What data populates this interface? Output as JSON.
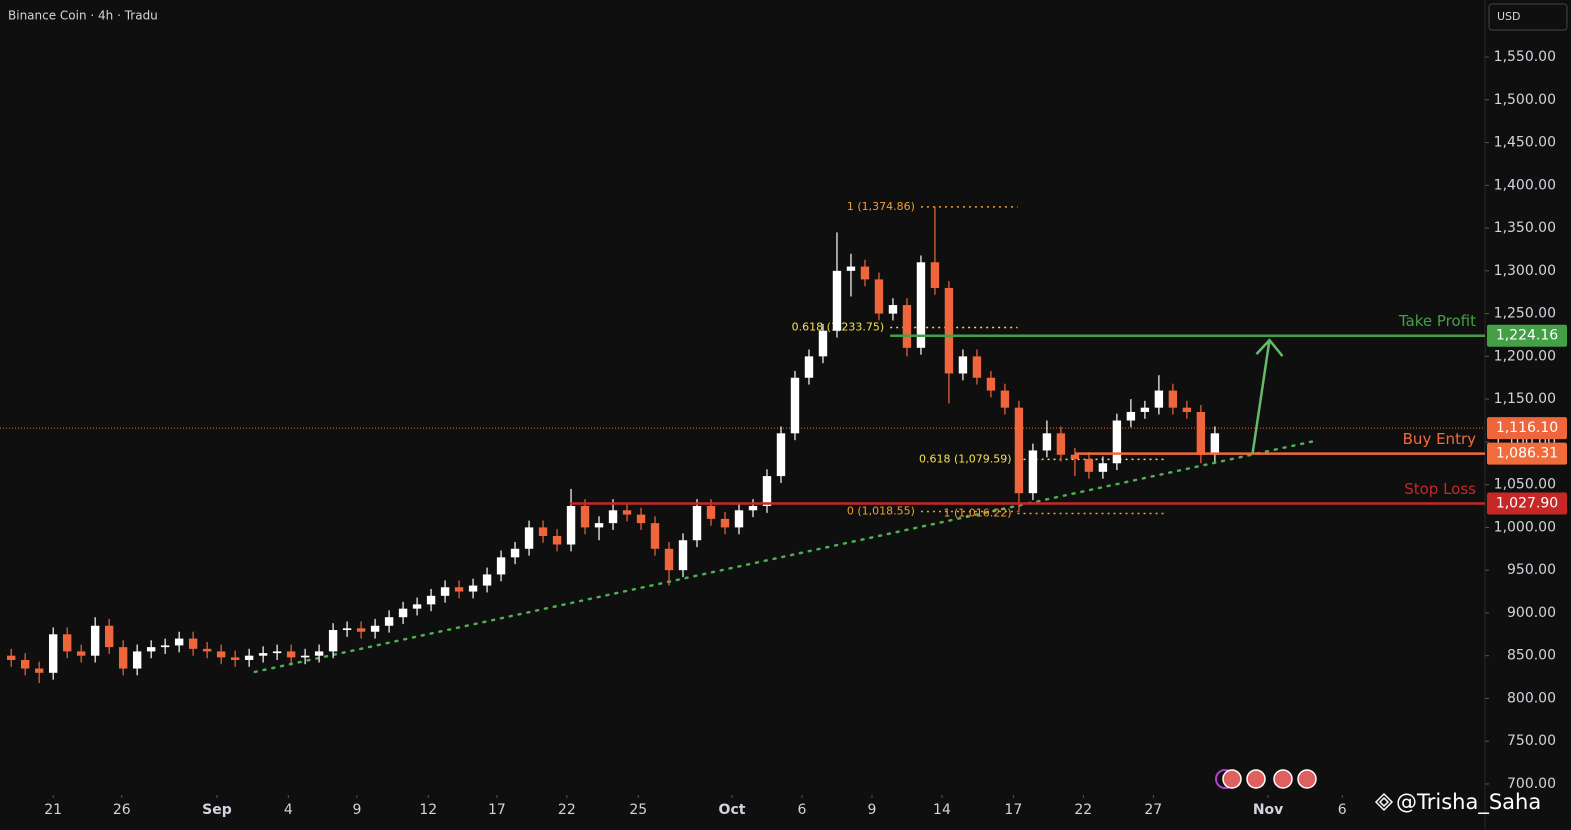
{
  "header": {
    "symbol": "Binance Coin · 4h · Tradu",
    "currency": "USD"
  },
  "watermark": "@Trisha_Saha",
  "chart_data": {
    "type": "candlestick",
    "x": [
      -3,
      -2,
      -1,
      0,
      1,
      2,
      3,
      4,
      5,
      6,
      7,
      8,
      9,
      10,
      11,
      12,
      13,
      14,
      15,
      16,
      17,
      18,
      19,
      20,
      21,
      22,
      23,
      24,
      25,
      26,
      27,
      28,
      29,
      30,
      31,
      32,
      33,
      34,
      35,
      36,
      37,
      38,
      39,
      40,
      41,
      42,
      43,
      44,
      45,
      46,
      47,
      48,
      49,
      50,
      51,
      52,
      53,
      54,
      55,
      56,
      57,
      58,
      59,
      60,
      61,
      62,
      63,
      64,
      65,
      66,
      67,
      68,
      69,
      70,
      71,
      72,
      73,
      74,
      75,
      76,
      77,
      78,
      79,
      80,
      81,
      82,
      83
    ],
    "open": [
      850,
      845,
      835,
      830,
      875,
      855,
      850,
      885,
      860,
      835,
      855,
      860,
      862,
      870,
      858,
      855,
      848,
      845,
      850,
      853,
      855,
      848,
      850,
      855,
      880,
      882,
      878,
      885,
      895,
      905,
      910,
      920,
      930,
      925,
      932,
      945,
      965,
      975,
      1000,
      990,
      980,
      1025,
      1000,
      1005,
      1020,
      1015,
      1005,
      975,
      950,
      985,
      1025,
      1010,
      1000,
      1020,
      1025,
      1060,
      1110,
      1175,
      1200,
      1230,
      1300,
      1305,
      1290,
      1250,
      1260,
      1210,
      1310,
      1280,
      1180,
      1200,
      1175,
      1160,
      1140,
      1040,
      1090,
      1110,
      1085,
      1080,
      1065,
      1075,
      1125,
      1135,
      1140,
      1160,
      1140,
      1135,
      1085
    ],
    "high": [
      858,
      853,
      843,
      883,
      883,
      863,
      895,
      893,
      868,
      863,
      868,
      870,
      878,
      878,
      866,
      863,
      856,
      858,
      861,
      863,
      863,
      858,
      863,
      888,
      890,
      890,
      893,
      903,
      913,
      918,
      928,
      938,
      938,
      940,
      953,
      973,
      983,
      1008,
      1008,
      998,
      1045,
      1033,
      1013,
      1033,
      1028,
      1023,
      1013,
      983,
      993,
      1033,
      1033,
      1018,
      1028,
      1033,
      1068,
      1118,
      1183,
      1208,
      1238,
      1345,
      1320,
      1313,
      1298,
      1268,
      1268,
      1318,
      1375,
      1288,
      1208,
      1208,
      1183,
      1168,
      1148,
      1098,
      1125,
      1118,
      1093,
      1088,
      1083,
      1133,
      1150,
      1148,
      1178,
      1168,
      1148,
      1143,
      1118
    ],
    "low": [
      837,
      827,
      818,
      822,
      847,
      842,
      842,
      852,
      827,
      827,
      847,
      852,
      854,
      850,
      847,
      840,
      837,
      837,
      842,
      845,
      840,
      840,
      842,
      847,
      872,
      870,
      870,
      877,
      887,
      897,
      902,
      912,
      917,
      917,
      924,
      937,
      957,
      967,
      982,
      972,
      972,
      992,
      985,
      997,
      1007,
      997,
      967,
      932,
      942,
      977,
      1002,
      992,
      992,
      1012,
      1017,
      1052,
      1102,
      1167,
      1192,
      1222,
      1270,
      1282,
      1242,
      1242,
      1200,
      1202,
      1272,
      1145,
      1172,
      1167,
      1152,
      1132,
      1018,
      1032,
      1082,
      1077,
      1060,
      1057,
      1057,
      1067,
      1117,
      1127,
      1132,
      1132,
      1127,
      1075,
      1077
    ],
    "close": [
      845,
      835,
      830,
      875,
      855,
      850,
      885,
      860,
      835,
      855,
      860,
      862,
      870,
      858,
      855,
      848,
      845,
      850,
      853,
      855,
      848,
      850,
      855,
      880,
      882,
      878,
      885,
      895,
      905,
      910,
      920,
      930,
      925,
      932,
      945,
      965,
      975,
      1000,
      990,
      980,
      1025,
      1000,
      1005,
      1020,
      1015,
      1005,
      975,
      950,
      985,
      1025,
      1010,
      1000,
      1020,
      1025,
      1060,
      1110,
      1175,
      1200,
      1230,
      1300,
      1305,
      1290,
      1250,
      1260,
      1210,
      1310,
      1280,
      1180,
      1200,
      1175,
      1160,
      1140,
      1040,
      1090,
      1110,
      1085,
      1080,
      1065,
      1075,
      1125,
      1135,
      1140,
      1160,
      1140,
      1135,
      1085,
      1110
    ],
    "up_color": "#ffffff",
    "down_color": "#f0663c",
    "xlim": [
      -3.8,
      102.3
    ],
    "ylim": [
      687.1,
      1616.7
    ],
    "xticks": [
      {
        "value": 0,
        "label": "21"
      },
      {
        "value": 4.9,
        "label": "26"
      },
      {
        "value": 11.7,
        "label": "Sep"
      },
      {
        "value": 16.8,
        "label": "4"
      },
      {
        "value": 21.7,
        "label": "9"
      },
      {
        "value": 26.8,
        "label": "12"
      },
      {
        "value": 31.7,
        "label": "17"
      },
      {
        "value": 36.7,
        "label": "22"
      },
      {
        "value": 41.8,
        "label": "25"
      },
      {
        "value": 48.5,
        "label": "Oct"
      },
      {
        "value": 53.5,
        "label": "6"
      },
      {
        "value": 58.5,
        "label": "9"
      },
      {
        "value": 63.5,
        "label": "14"
      },
      {
        "value": 68.6,
        "label": "17"
      },
      {
        "value": 73.6,
        "label": "22"
      },
      {
        "value": 78.6,
        "label": "27"
      },
      {
        "value": 86.8,
        "label": "Nov"
      },
      {
        "value": 92.1,
        "label": "6"
      }
    ],
    "yticks": [
      {
        "value": 700,
        "label": "700.00"
      },
      {
        "value": 750,
        "label": "750.00"
      },
      {
        "value": 800,
        "label": "800.00"
      },
      {
        "value": 850,
        "label": "850.00"
      },
      {
        "value": 900,
        "label": "900.00"
      },
      {
        "value": 950,
        "label": "950.00"
      },
      {
        "value": 1000,
        "label": "1,000.00"
      },
      {
        "value": 1050,
        "label": "1,050.00"
      },
      {
        "value": 1100,
        "label": "1,100.00"
      },
      {
        "value": 1150,
        "label": "1,150.00"
      },
      {
        "value": 1200,
        "label": "1,200.00"
      },
      {
        "value": 1250,
        "label": "1,250.00"
      },
      {
        "value": 1300,
        "label": "1,300.00"
      },
      {
        "value": 1350,
        "label": "1,350.00"
      },
      {
        "value": 1400,
        "label": "1,400.00"
      },
      {
        "value": 1450,
        "label": "1,450.00"
      },
      {
        "value": 1500,
        "label": "1,500.00"
      },
      {
        "value": 1550,
        "label": "1,550.00"
      }
    ],
    "current_price": {
      "value": 1116.1,
      "value_label": "1,116.10",
      "color": "#f0663c"
    },
    "levels": [
      {
        "name": "Take Profit",
        "value": 1224.16,
        "value_label": "1,224.16",
        "color": "#43a047",
        "start": 59.8
      },
      {
        "name": "Buy Entry",
        "value": 1086.31,
        "value_label": "1,086.31",
        "color": "#f26b3a",
        "start": 73
      },
      {
        "name": "Stop Loss",
        "value": 1027.9,
        "value_label": "1,027.90",
        "color": "#c62828",
        "start": 36.9
      }
    ],
    "fib_levels": [
      {
        "label": "1 (1,374.86)",
        "value": 1374.86,
        "x": [
          62,
          68.9
        ],
        "color": "#f0a030"
      },
      {
        "label": "0.618 (1,233.75)",
        "value": 1233.75,
        "x": [
          59.8,
          68.9
        ],
        "color": "#f5e050"
      },
      {
        "label": "0 (1,018.55)",
        "value": 1018.55,
        "x": [
          62,
          68.9
        ],
        "color": "#f0a030"
      },
      {
        "label": "0.618 (1,079.59)",
        "value": 1079.59,
        "x": [
          68.9,
          79.4
        ],
        "color": "#f5e050"
      },
      {
        "label": "1 (1,016.22)",
        "value": 1016.22,
        "x": [
          68.9,
          79.4
        ],
        "color": "#f0a030"
      }
    ],
    "trendline": {
      "x": [
        14.4,
        90.4
      ],
      "y": [
        831,
        1102
      ],
      "color": "#4caf50"
    },
    "arrow": {
      "x": [
        85.7,
        86.9
      ],
      "y": [
        1087,
        1219
      ],
      "color": "#66bb6a"
    }
  }
}
